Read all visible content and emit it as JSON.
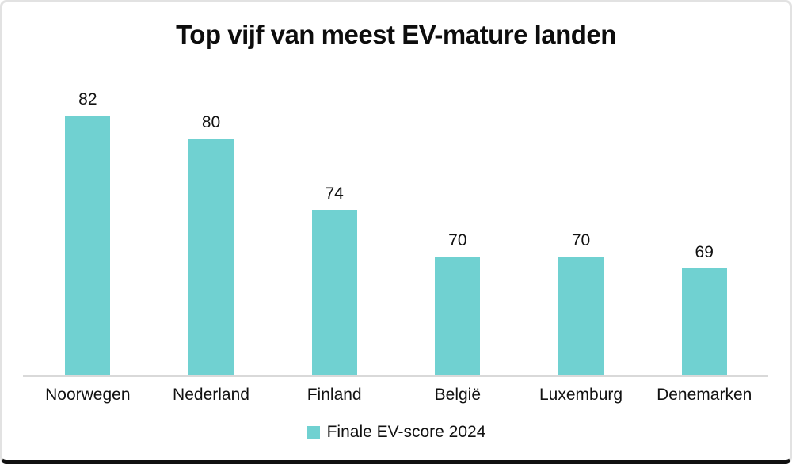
{
  "colors": {
    "bar": "#70D1D1",
    "axis_line": "#D9D9D9",
    "text": "#111111",
    "background": "#FFFFFF"
  },
  "chart_data": {
    "type": "bar",
    "title": "Top vijf van meest EV-mature landen",
    "categories": [
      "Noorwegen",
      "Nederland",
      "Finland",
      "België",
      "Luxemburg",
      "Denemarken"
    ],
    "values": [
      82,
      80,
      74,
      70,
      70,
      69
    ],
    "series_name": "Finale EV-score 2024",
    "xlabel": "",
    "ylabel": "",
    "ylim": [
      60,
      85
    ],
    "grid": false,
    "legend_position": "bottom",
    "value_labels_shown": true
  }
}
